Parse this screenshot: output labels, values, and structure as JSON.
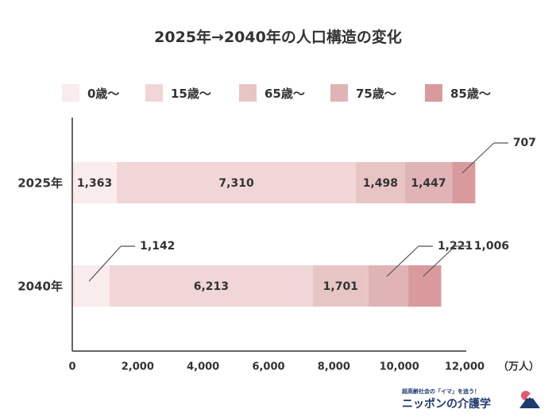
{
  "title": "2025年→2040年の人口構造の変化",
  "legend": [
    {
      "label": "0歳〜",
      "color": "#f9ecec"
    },
    {
      "label": "15歳〜",
      "color": "#f0d6d6"
    },
    {
      "label": "65歳〜",
      "color": "#e8c5c5"
    },
    {
      "label": "75歳〜",
      "color": "#e0b4b6"
    },
    {
      "label": "85歳〜",
      "color": "#d89a9d"
    }
  ],
  "chart_data": {
    "type": "bar",
    "orientation": "horizontal",
    "stacked": true,
    "categories": [
      "2025年",
      "2040年"
    ],
    "series": [
      {
        "name": "0歳〜",
        "values": [
          1363,
          1142
        ],
        "labels": [
          "1,363",
          "1,142"
        ]
      },
      {
        "name": "15歳〜",
        "values": [
          7310,
          6213
        ],
        "labels": [
          "7,310",
          "6,213"
        ]
      },
      {
        "name": "65歳〜",
        "values": [
          1498,
          1701
        ],
        "labels": [
          "1,498",
          "1,701"
        ]
      },
      {
        "name": "75歳〜",
        "values": [
          1447,
          1221
        ],
        "labels": [
          "1,447",
          "1,221"
        ]
      },
      {
        "name": "85歳〜",
        "values": [
          707,
          1006
        ],
        "labels": [
          "707",
          "1,006"
        ]
      }
    ],
    "xlim": [
      0,
      12000
    ],
    "xticks": [
      0,
      2000,
      4000,
      6000,
      8000,
      10000,
      12000
    ],
    "xtick_labels": [
      "0",
      "2,000",
      "4,000",
      "6,000",
      "8,000",
      "10,000",
      "12,000"
    ],
    "xunit": "（万人）",
    "legend_position": "top",
    "grid": false
  },
  "brand": {
    "tagline": "超高齢社会の「イマ」を追う！",
    "name": "ニッポンの介護学"
  }
}
